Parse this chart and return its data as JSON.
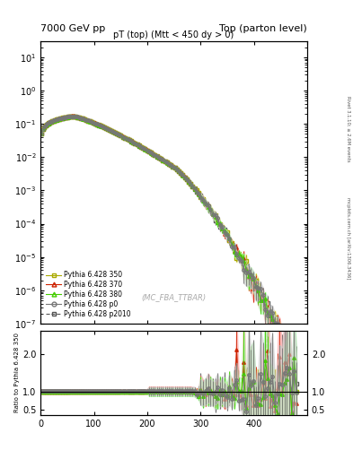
{
  "title_left": "7000 GeV pp",
  "title_right": "Top (parton level)",
  "plot_title": "pT (top) (Mtt < 450 dy > 0)",
  "watermark": "(MC_FBA_TTBAR)",
  "right_label_top": "Rivet 3.1.10; ≥ 2.6M events",
  "right_label_bot": "mcplots.cern.ch [arXiv:1306.3436]",
  "ylabel_ratio": "Ratio to Pythia 6.428 350",
  "xlim": [
    0,
    500
  ],
  "ylim_main": [
    1e-07,
    30
  ],
  "ylim_ratio": [
    0.35,
    2.65
  ],
  "xticks": [
    0,
    100,
    200,
    300,
    400
  ],
  "yticks_ratio": [
    0.5,
    1.0,
    2.0
  ],
  "series": [
    {
      "label": "Pythia 6.428 350",
      "color": "#aaaa00",
      "marker": "s",
      "linestyle": "-",
      "linewidth": 0.8,
      "markersize": 2.5,
      "fillstyle": "none",
      "band_color": "#eeee88",
      "zorder": 3
    },
    {
      "label": "Pythia 6.428 370",
      "color": "#cc2200",
      "marker": "^",
      "linestyle": "-",
      "linewidth": 0.8,
      "markersize": 2.5,
      "fillstyle": "none",
      "band_color": "#ffaaaa",
      "zorder": 4
    },
    {
      "label": "Pythia 6.428 380",
      "color": "#44cc00",
      "marker": "^",
      "linestyle": "-",
      "linewidth": 0.8,
      "markersize": 2.5,
      "fillstyle": "none",
      "band_color": "#aaffaa",
      "zorder": 5
    },
    {
      "label": "Pythia 6.428 p0",
      "color": "#777777",
      "marker": "o",
      "linestyle": "-",
      "linewidth": 0.8,
      "markersize": 2.5,
      "fillstyle": "none",
      "band_color": "#cccccc",
      "zorder": 6
    },
    {
      "label": "Pythia 6.428 p2010",
      "color": "#555555",
      "marker": "s",
      "linestyle": "--",
      "linewidth": 0.8,
      "markersize": 2.5,
      "fillstyle": "none",
      "band_color": "#dddddd",
      "zorder": 2
    }
  ]
}
